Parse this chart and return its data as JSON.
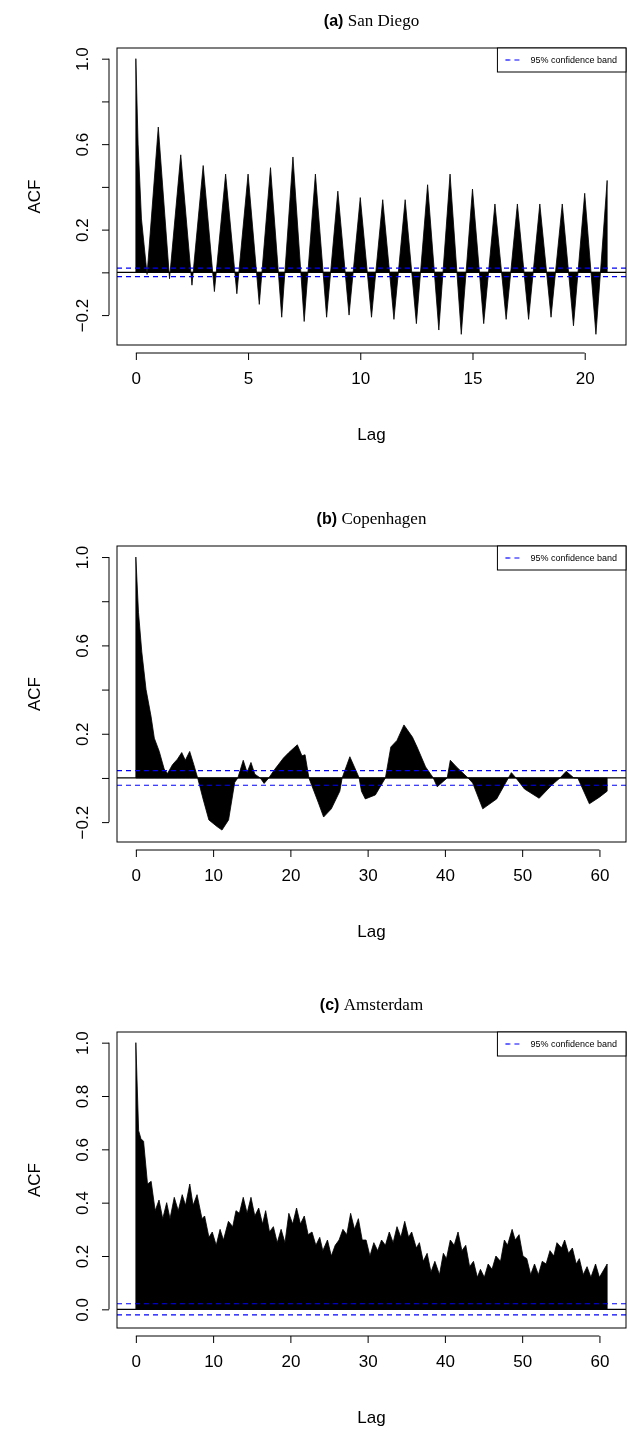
{
  "chart_data": [
    {
      "type": "area",
      "title": "(a) San Diego",
      "xlabel": "Lag",
      "ylabel": "ACF",
      "xlim": [
        -0.84,
        21.84
      ],
      "xticks": [
        0,
        5,
        10,
        15,
        20
      ],
      "ylim": [
        -0.34,
        1.05
      ],
      "yticks": [
        {
          "value": 1.0,
          "label": "1.0"
        },
        {
          "value": 0.8,
          "label": null
        },
        {
          "value": 0.6,
          "label": "0.6"
        },
        {
          "value": 0.4,
          "label": null
        },
        {
          "value": 0.2,
          "label": "0.2"
        },
        {
          "value": 0,
          "label": null
        },
        {
          "value": -0.2,
          "label": "−0.2"
        }
      ],
      "legend": "top right",
      "grid": false,
      "ref_lines": [
        {
          "axis": "y",
          "value": 0,
          "color": "#000000"
        },
        {
          "axis": "y",
          "value": 0.02,
          "label": "95% confidence band",
          "color": "#0000ff",
          "line_style": "dashed"
        },
        {
          "axis": "y",
          "value": -0.02,
          "color": "#0000ff",
          "line_style": "dashed"
        }
      ],
      "series": [
        {
          "color": "#000000",
          "x": [
            0,
            0.1,
            0.25,
            0.5,
            1,
            1.5,
            2,
            2.5,
            3,
            3.5,
            4,
            4.5,
            5,
            5.5,
            6,
            6.5,
            7,
            7.5,
            8,
            8.5,
            9,
            9.5,
            10,
            10.5,
            11,
            11.5,
            12,
            12.5,
            13,
            13.5,
            14,
            14.5,
            15,
            15.5,
            16,
            16.5,
            17,
            17.5,
            18,
            18.5,
            19,
            19.5,
            20,
            20.5,
            21
          ],
          "values": [
            1.0,
            0.6,
            0.25,
            -0.01,
            0.68,
            -0.03,
            0.55,
            -0.06,
            0.5,
            -0.09,
            0.46,
            -0.1,
            0.46,
            -0.15,
            0.49,
            -0.21,
            0.54,
            -0.23,
            0.46,
            -0.21,
            0.38,
            -0.2,
            0.35,
            -0.21,
            0.34,
            -0.22,
            0.34,
            -0.24,
            0.41,
            -0.27,
            0.46,
            -0.29,
            0.39,
            -0.24,
            0.32,
            -0.22,
            0.32,
            -0.22,
            0.32,
            -0.21,
            0.32,
            -0.25,
            0.37,
            -0.29,
            0.43
          ]
        }
      ]
    },
    {
      "type": "area",
      "title": "(b) Copenhagen",
      "xlabel": "Lag",
      "ylabel": "ACF",
      "xlim": [
        -2.44,
        63.44
      ],
      "xticks": [
        0,
        10,
        20,
        30,
        40,
        50,
        60
      ],
      "ylim": [
        -0.29,
        1.05
      ],
      "yticks": [
        {
          "value": 1.0,
          "label": "1.0"
        },
        {
          "value": 0.8,
          "label": null
        },
        {
          "value": 0.6,
          "label": "0.6"
        },
        {
          "value": 0.4,
          "label": null
        },
        {
          "value": 0.2,
          "label": "0.2"
        },
        {
          "value": 0,
          "label": null
        },
        {
          "value": -0.2,
          "label": "−0.2"
        }
      ],
      "legend": "top right",
      "grid": false,
      "ref_lines": [
        {
          "axis": "y",
          "value": 0,
          "color": "#000000"
        },
        {
          "axis": "y",
          "value": 0.033,
          "label": "95% confidence band",
          "color": "#0000ff",
          "line_style": "dashed"
        },
        {
          "axis": "y",
          "value": -0.033,
          "color": "#0000ff",
          "line_style": "dashed"
        }
      ],
      "series": [
        {
          "color": "#000000",
          "x": [
            0,
            0.34,
            0.77,
            1.32,
            1.96,
            2.39,
            3.03,
            3.67,
            4.1,
            4.74,
            5.38,
            5.94,
            6.4,
            6.97,
            7.5,
            8.0,
            8.7,
            9.45,
            10.5,
            11.15,
            12.0,
            12.8,
            13.2,
            13.9,
            14.4,
            14.9,
            15.4,
            16.1,
            16.6,
            17.2,
            18.0,
            19.1,
            19.8,
            20.9,
            21.5,
            21.9,
            22.4,
            23.6,
            24.3,
            25.3,
            26.4,
            26.7,
            27.7,
            28.7,
            28.9,
            29.2,
            29.7,
            31.0,
            32.3,
            33.0,
            33.8,
            34.7,
            35.8,
            36.4,
            37.5,
            38.5,
            39.0,
            40.3,
            40.7,
            41.5,
            43.0,
            43.6,
            44.9,
            46.7,
            48.6,
            49.2,
            50.3,
            52.2,
            53.9,
            54.9,
            55.7,
            56.7,
            57.2,
            58.7,
            60.0,
            61.0
          ],
          "values": [
            1.0,
            0.75,
            0.57,
            0.4,
            0.28,
            0.18,
            0.12,
            0.04,
            0.02,
            0.06,
            0.085,
            0.115,
            0.08,
            0.12,
            0.06,
            0,
            -0.095,
            -0.19,
            -0.22,
            -0.236,
            -0.19,
            -0.02,
            0,
            0.08,
            0.025,
            0.07,
            0.017,
            0,
            -0.025,
            0,
            0.04,
            0.09,
            0.115,
            0.15,
            0.1,
            0.105,
            0,
            -0.11,
            -0.177,
            -0.14,
            -0.06,
            0,
            0.096,
            0.017,
            0,
            -0.06,
            -0.095,
            -0.077,
            0,
            0.14,
            0.17,
            0.24,
            0.185,
            0.14,
            0.05,
            0,
            -0.04,
            0,
            0.08,
            0.05,
            0,
            -0.023,
            -0.14,
            -0.095,
            0.024,
            0,
            -0.05,
            -0.092,
            -0.03,
            0,
            0.03,
            0,
            0,
            -0.117,
            -0.087,
            -0.06
          ]
        }
      ]
    },
    {
      "type": "area",
      "title": "(c) Amsterdam",
      "xlabel": "Lag",
      "ylabel": "ACF",
      "xlim": [
        -2.44,
        63.44
      ],
      "xticks": [
        0,
        10,
        20,
        30,
        40,
        50,
        60
      ],
      "ylim": [
        -0.07,
        1.04
      ],
      "yticks": [
        {
          "value": 0,
          "label": "0.0"
        },
        {
          "value": 0.2,
          "label": "0.2"
        },
        {
          "value": 0.4,
          "label": "0.4"
        },
        {
          "value": 0.6,
          "label": "0.6"
        },
        {
          "value": 0.8,
          "label": "0.8"
        },
        {
          "value": 1.0,
          "label": "1.0"
        }
      ],
      "legend": "top right",
      "grid": false,
      "ref_lines": [
        {
          "axis": "y",
          "value": 0,
          "color": "#000000"
        },
        {
          "axis": "y",
          "value": 0.021,
          "label": "95% confidence band",
          "color": "#0000ff",
          "line_style": "dashed"
        },
        {
          "axis": "y",
          "value": -0.021,
          "color": "#0000ff",
          "line_style": "dashed"
        }
      ],
      "series": [
        {
          "color": "#000000",
          "x": [
            0,
            0.36,
            0.66,
            1.0,
            1.51,
            1.98,
            2.5,
            3.0,
            3.48,
            3.99,
            4.42,
            4.97,
            5.49,
            6.0,
            6.43,
            6.98,
            7.41,
            7.92,
            8.56,
            8.9,
            9.46,
            9.89,
            10.4,
            10.9,
            11.34,
            11.98,
            12.54,
            12.96,
            13.4,
            13.9,
            14.4,
            14.9,
            15.4,
            15.9,
            16.4,
            16.8,
            17.3,
            17.8,
            18.3,
            18.8,
            19.3,
            19.8,
            20.3,
            20.8,
            21.3,
            21.8,
            22.3,
            22.8,
            23.3,
            23.8,
            24.2,
            24.8,
            25.3,
            25.8,
            26.3,
            26.8,
            27.3,
            27.8,
            28.3,
            28.8,
            29.3,
            29.8,
            30.3,
            30.8,
            31.3,
            31.8,
            32.3,
            32.8,
            33.3,
            33.8,
            34.3,
            34.8,
            35.3,
            35.7,
            36.3,
            36.7,
            37.2,
            37.7,
            38.2,
            38.7,
            39.3,
            39.8,
            40.2,
            40.7,
            41.2,
            41.7,
            42.2,
            42.7,
            43.2,
            43.7,
            44.2,
            44.6,
            45.1,
            45.6,
            46.1,
            46.6,
            47.2,
            47.7,
            48.1,
            48.7,
            49.1,
            49.6,
            50.1,
            50.6,
            51.1,
            51.6,
            52.1,
            52.6,
            53.1,
            53.6,
            54.1,
            54.5,
            55.1,
            55.5,
            56.0,
            56.5,
            57.0,
            57.4,
            57.9,
            58.4,
            58.9,
            59.5,
            60.0,
            61.0
          ],
          "values": [
            1.0,
            0.67,
            0.64,
            0.63,
            0.47,
            0.48,
            0.37,
            0.41,
            0.34,
            0.4,
            0.34,
            0.42,
            0.37,
            0.43,
            0.39,
            0.47,
            0.39,
            0.43,
            0.34,
            0.35,
            0.27,
            0.29,
            0.24,
            0.3,
            0.26,
            0.33,
            0.31,
            0.37,
            0.36,
            0.42,
            0.36,
            0.42,
            0.35,
            0.38,
            0.32,
            0.37,
            0.29,
            0.31,
            0.25,
            0.3,
            0.25,
            0.36,
            0.32,
            0.38,
            0.32,
            0.35,
            0.28,
            0.29,
            0.24,
            0.27,
            0.22,
            0.26,
            0.2,
            0.24,
            0.26,
            0.3,
            0.28,
            0.36,
            0.3,
            0.34,
            0.26,
            0.26,
            0.2,
            0.25,
            0.22,
            0.26,
            0.24,
            0.29,
            0.25,
            0.31,
            0.27,
            0.33,
            0.27,
            0.29,
            0.23,
            0.25,
            0.18,
            0.21,
            0.14,
            0.18,
            0.13,
            0.21,
            0.19,
            0.26,
            0.24,
            0.29,
            0.22,
            0.24,
            0.16,
            0.18,
            0.12,
            0.15,
            0.12,
            0.17,
            0.15,
            0.2,
            0.18,
            0.26,
            0.24,
            0.3,
            0.26,
            0.28,
            0.2,
            0.19,
            0.13,
            0.17,
            0.13,
            0.18,
            0.17,
            0.22,
            0.2,
            0.25,
            0.23,
            0.26,
            0.21,
            0.23,
            0.17,
            0.19,
            0.13,
            0.16,
            0.12,
            0.17,
            0.12,
            0.17
          ]
        }
      ]
    }
  ]
}
